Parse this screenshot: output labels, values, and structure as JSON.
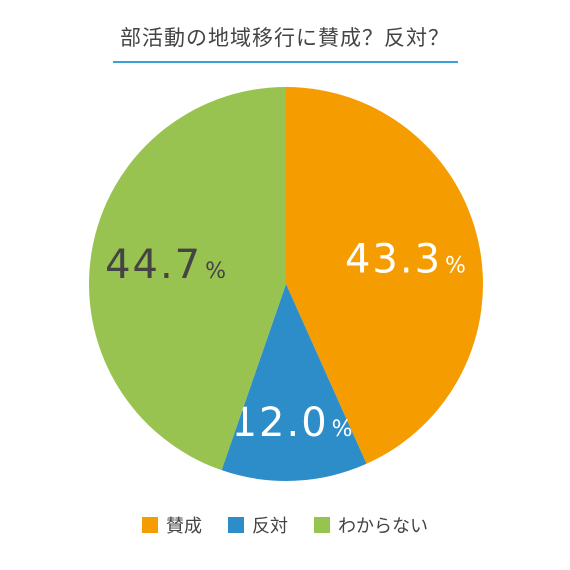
{
  "chart_data": {
    "type": "pie",
    "title": "部活動の地域移行に賛成？反対？",
    "start_angle_deg": 0,
    "direction": "clockwise",
    "slices": [
      {
        "label": "賛成",
        "value": 43.3,
        "display": "43.3",
        "unit": "%",
        "color": "#f59c00",
        "label_color": "#ffffff"
      },
      {
        "label": "反対",
        "value": 12.0,
        "display": "12.0",
        "unit": "%",
        "color": "#2d8dc9",
        "label_color": "#ffffff"
      },
      {
        "label": "わからない",
        "value": 44.7,
        "display": "44.7",
        "unit": "%",
        "color": "#98c350",
        "label_color": "#444444"
      }
    ],
    "legend": [
      "賛成",
      "反対",
      "わからない"
    ],
    "legend_placement": "bottom"
  }
}
